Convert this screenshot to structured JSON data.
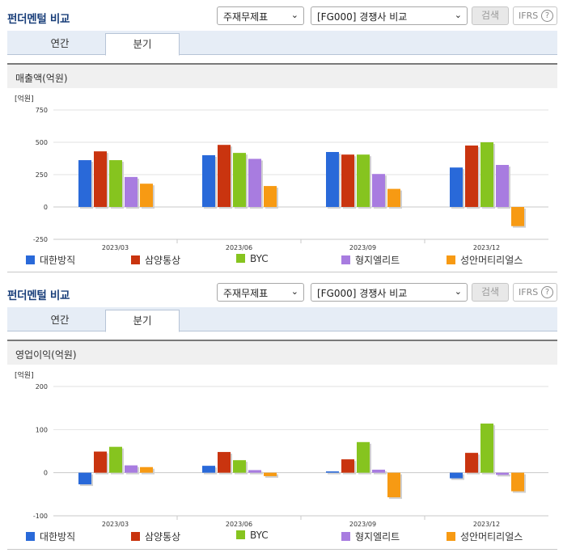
{
  "panels": [
    {
      "header": {
        "title": "펀더멘털 비교",
        "select1": "주재무제표",
        "select2": "[FG000] 경쟁사 비교",
        "search_label": "검색",
        "ifrs_label": "IFRS",
        "help_glyph": "?"
      },
      "tabs": [
        {
          "label": "연간"
        },
        {
          "label": "분기"
        }
      ],
      "chart_title": "매출액(억원)"
    },
    {
      "header": {
        "title": "펀더멘털 비교",
        "select1": "주재무제표",
        "select2": "[FG000] 경쟁사 비교",
        "search_label": "검색",
        "ifrs_label": "IFRS",
        "help_glyph": "?"
      },
      "tabs": [
        {
          "label": "연간"
        },
        {
          "label": "분기"
        }
      ],
      "chart_title": "영업이익(억원)"
    }
  ],
  "colors": {
    "series": [
      "#2969d9",
      "#c9340f",
      "#86c41f",
      "#a87ce0",
      "#f79a13"
    ],
    "header_title": "#1a3f7a",
    "tab_bg": "#e6edf6"
  },
  "icons": {
    "dropdown": "chevron-down-icon",
    "help": "question-circle-icon"
  },
  "chart_data": [
    {
      "type": "bar",
      "unit_label": "[억원]",
      "categories": [
        "2023/03",
        "2023/06",
        "2023/09",
        "2023/12"
      ],
      "yticks": [
        "750",
        "500",
        "250",
        "0",
        "-250"
      ],
      "ylim": [
        -250,
        750
      ],
      "grid": true,
      "legend_position": "bottom",
      "series": [
        {
          "name": "대한방직",
          "values": [
            362,
            400,
            425,
            305
          ]
        },
        {
          "name": "삼양통상",
          "values": [
            430,
            480,
            405,
            475
          ]
        },
        {
          "name": "BYC",
          "values": [
            362,
            418,
            405,
            500
          ]
        },
        {
          "name": "형지엘리트",
          "values": [
            232,
            372,
            255,
            325
          ]
        },
        {
          "name": "성안머티리얼스",
          "values": [
            180,
            162,
            140,
            -148
          ]
        }
      ]
    },
    {
      "type": "bar",
      "unit_label": "[억원]",
      "categories": [
        "2023/03",
        "2023/06",
        "2023/09",
        "2023/12"
      ],
      "yticks": [
        "200",
        "100",
        "0",
        "-100"
      ],
      "ylim": [
        -100,
        200
      ],
      "grid": true,
      "legend_position": "bottom",
      "series": [
        {
          "name": "대한방직",
          "values": [
            -27,
            16,
            3,
            -13
          ]
        },
        {
          "name": "삼양통상",
          "values": [
            49,
            48,
            31,
            46
          ]
        },
        {
          "name": "BYC",
          "values": [
            60,
            29,
            71,
            114
          ]
        },
        {
          "name": "형지엘리트",
          "values": [
            17,
            6,
            7,
            -5
          ]
        },
        {
          "name": "성안머티리얼스",
          "values": [
            13,
            -8,
            -57,
            -43
          ]
        }
      ]
    }
  ]
}
